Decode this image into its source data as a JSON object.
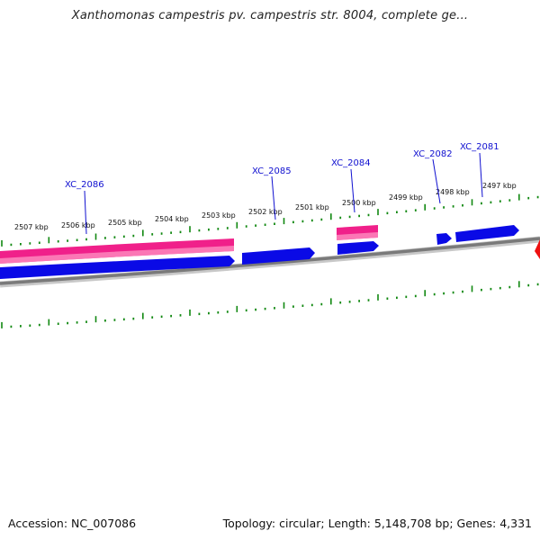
{
  "title": "Xanthomonas campestris pv. campestris str. 8004, complete ge...",
  "footer": {
    "accession_label": "Accession:",
    "accession": "NC_007086",
    "summary": "Topology: circular; Length: 5,148,708 bp; Genes: 4,331"
  },
  "colors": {
    "forward_cds": "#0a0ae6",
    "reverse_cds": "#f0208a",
    "ticks": "#118811",
    "backbone": "#7a7a7a",
    "gene_label": "#1010d0",
    "edge_marker": "#ee1111"
  },
  "ruler_labels": [
    "2507 kbp",
    "2506 kbp",
    "2505 kbp",
    "2504 kbp",
    "2503 kbp",
    "2502 kbp",
    "2501 kbp",
    "2500 kbp",
    "2499 kbp",
    "2498 kbp",
    "2497 kbp"
  ],
  "gene_labels": [
    "XC_2086",
    "XC_2085",
    "XC_2084",
    "XC_2082",
    "XC_2081"
  ]
}
